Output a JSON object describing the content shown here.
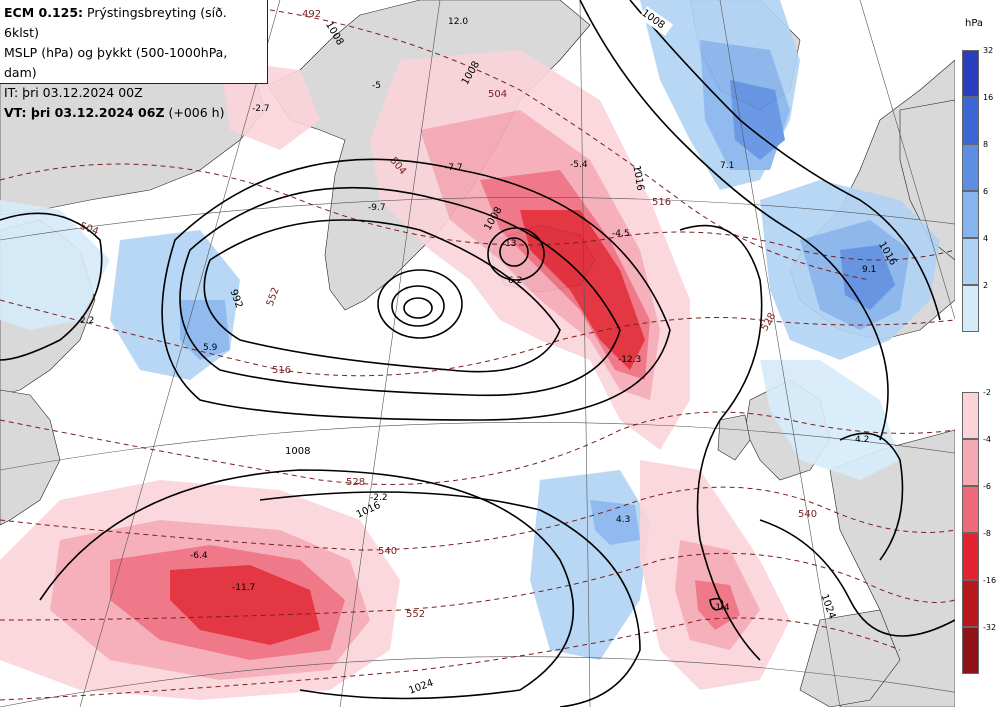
{
  "header": {
    "line1_model": "ECM 0.125:",
    "line1_rest": "Prýstingsbreyting (síð. 6klst)",
    "line2": "MSLP (hPa) og þykkt (500-1000hPa, dam)",
    "line3": "IT: þri 03.12.2024 00Z",
    "line4_bold": "VT: þri 03.12.2024 06Z",
    "line4_rest": "(+006 h)"
  },
  "legend": {
    "unit": "hPa",
    "positive_ticks": [
      "32",
      "16",
      "8",
      "6",
      "4",
      "2"
    ],
    "negative_ticks": [
      "-2",
      "-4",
      "-6",
      "-8",
      "-16",
      "-32"
    ],
    "positive_colors": [
      "#2a3fc0",
      "#3c66d6",
      "#5c8ee4",
      "#86b4ee",
      "#b0d3f5",
      "#d6ebfa"
    ],
    "negative_colors": [
      "#fbd4da",
      "#f6a8b4",
      "#ee6b7c",
      "#e0232f",
      "#b9171e",
      "#8e1218"
    ]
  },
  "isobar_labels": [
    "1008",
    "1008",
    "1008",
    "992",
    "1016",
    "1024",
    "1024",
    "1008",
    "1008",
    "1016",
    "1016"
  ],
  "thickness_labels": [
    "492",
    "504",
    "516",
    "528",
    "540",
    "552",
    "504",
    "516",
    "528",
    "540",
    "552",
    "504"
  ],
  "change_labels": [
    "-7.7",
    "-9.7",
    "-5.4",
    "-4.5",
    "-12.3",
    "-11.7",
    "-6.4",
    "-2.2",
    "-1.4",
    "7.1",
    "9.1",
    "4.2",
    "4.3",
    "5.9",
    "2.2",
    "6.2",
    "13",
    "-2.7",
    "12.0",
    "-5"
  ],
  "map_colors": {
    "land": "#d9d9d9",
    "sea": "#ffffff",
    "isobar": "#000000",
    "thickness": "#7a1f1f",
    "grid": "#555555"
  }
}
